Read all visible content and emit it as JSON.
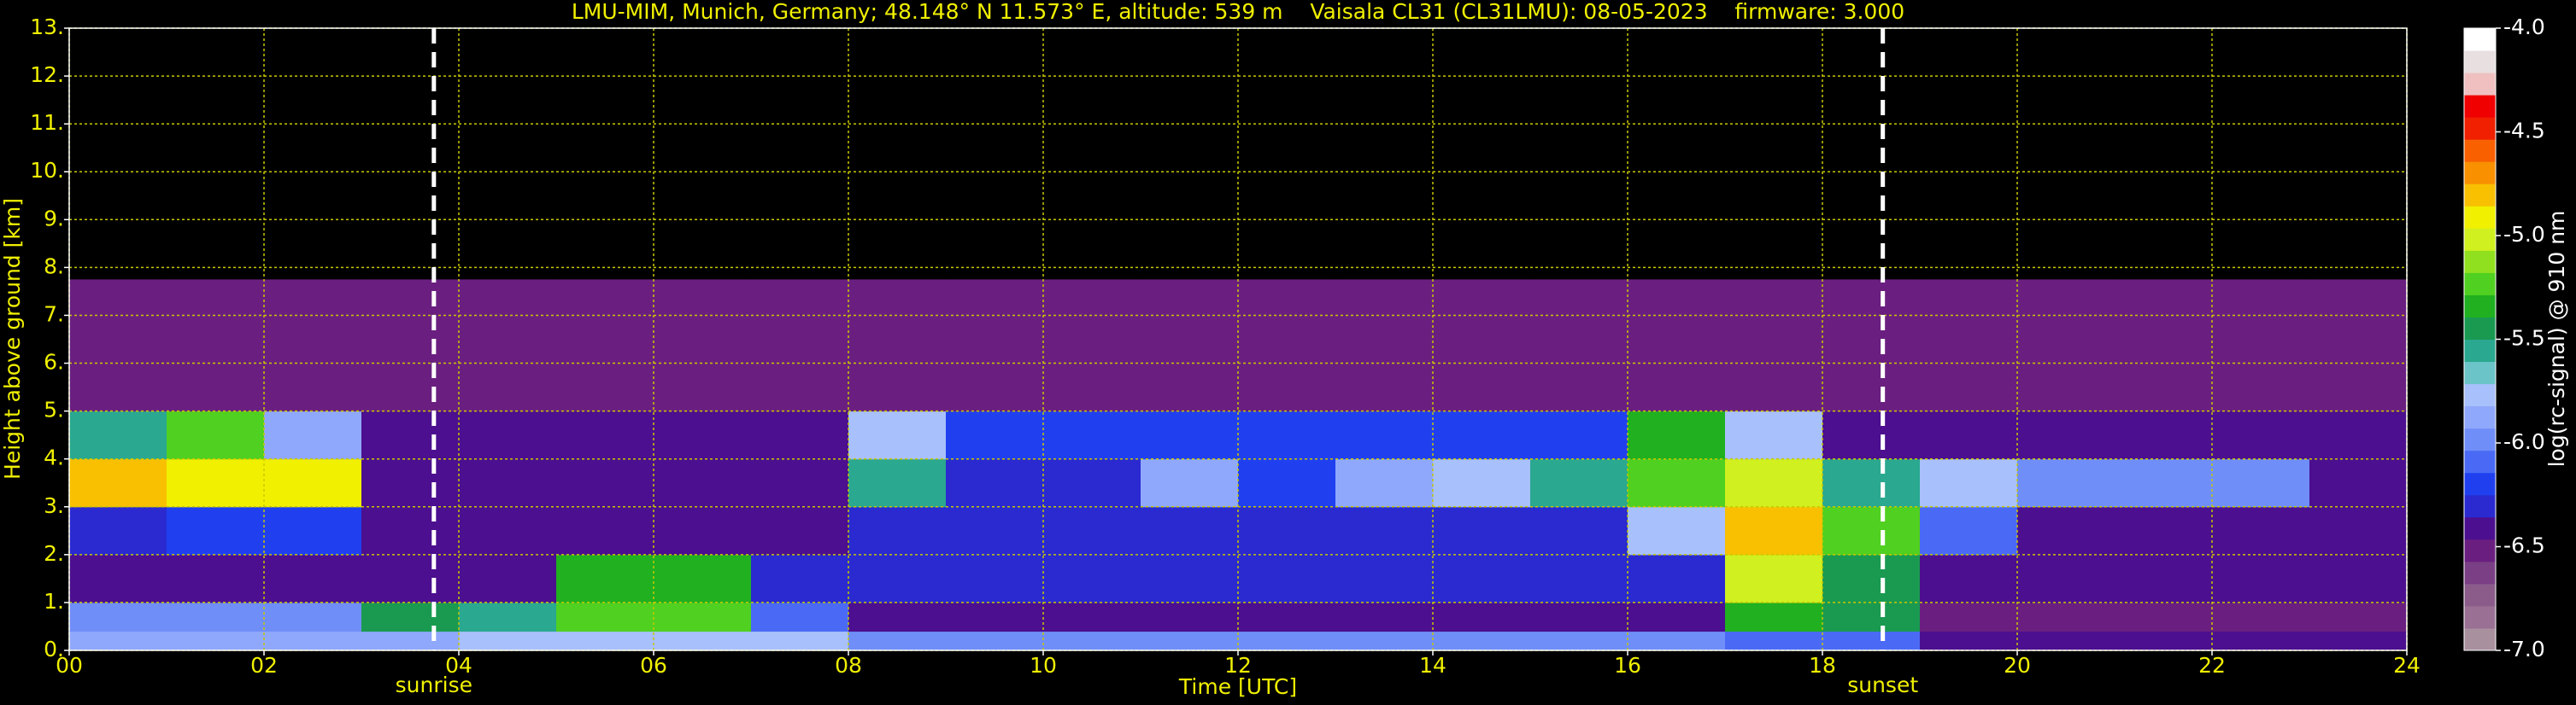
{
  "chart_data": {
    "type": "heatmap",
    "title": "LMU-MIM, Munich, Germany; 48.148° N 11.573° E, altitude: 539 m    Vaisala CL31 (CL31LMU): 08-05-2023    firmware: 3.000",
    "xlabel": "Time [UTC]",
    "ylabel": "Height above ground [km]",
    "xlim": [
      0,
      24
    ],
    "ylim": [
      0,
      13
    ],
    "xticks": [
      {
        "value": 0,
        "label": "00"
      },
      {
        "value": 2,
        "label": "02"
      },
      {
        "value": 4,
        "label": "04"
      },
      {
        "value": 6,
        "label": "06"
      },
      {
        "value": 8,
        "label": "08"
      },
      10,
      12,
      14,
      16,
      18,
      20,
      22,
      24
    ],
    "yticks": [
      {
        "value": 0,
        "label": "0."
      },
      {
        "value": 1,
        "label": "1."
      },
      {
        "value": 2,
        "label": "2."
      },
      {
        "value": 3,
        "label": "3."
      },
      {
        "value": 4,
        "label": "4."
      },
      {
        "value": 5,
        "label": "5."
      },
      {
        "value": 6,
        "label": "6."
      },
      {
        "value": 7,
        "label": "7."
      },
      {
        "value": 8,
        "label": "8."
      },
      {
        "value": 9,
        "label": "9."
      },
      {
        "value": 10,
        "label": "10."
      },
      {
        "value": 11,
        "label": "11."
      },
      {
        "value": 12,
        "label": "12."
      },
      {
        "value": 13,
        "label": "13."
      }
    ],
    "grid": true,
    "grid_color": "#c8c800",
    "text_color": "#f0f000",
    "x_bins": [
      0,
      1,
      2,
      3,
      4,
      5,
      6,
      7,
      8,
      9,
      10,
      11,
      12,
      13,
      14,
      15,
      16,
      17,
      18,
      19,
      20,
      21,
      22,
      23,
      24
    ],
    "y_bins": [
      0,
      0.4,
      1,
      2,
      3,
      4,
      5,
      7.75
    ],
    "z": [
      [
        -5.9,
        -5.9,
        -5.9,
        -5.9,
        -5.8,
        -5.8,
        -5.8,
        -5.8,
        -6.0,
        -6.0,
        -6.0,
        -6.0,
        -6.0,
        -6.0,
        -6.0,
        -6.0,
        -6.0,
        -6.1,
        -6.1,
        -6.4,
        -6.4,
        -6.4,
        -6.4,
        -6.4
      ],
      [
        -6.0,
        -6.0,
        -6.0,
        -5.5,
        -5.6,
        -5.2,
        -5.2,
        -6.1,
        -6.4,
        -6.4,
        -6.4,
        -6.4,
        -6.4,
        -6.4,
        -6.4,
        -6.4,
        -6.4,
        -5.3,
        -5.5,
        -6.5,
        -6.5,
        -6.5,
        -6.5,
        -6.5
      ],
      [
        -6.4,
        -6.4,
        -6.4,
        -6.4,
        -6.4,
        -5.3,
        -5.3,
        -6.3,
        -6.3,
        -6.3,
        -6.3,
        -6.3,
        -6.3,
        -6.3,
        -6.3,
        -6.3,
        -6.3,
        -5.0,
        -5.4,
        -6.4,
        -6.4,
        -6.4,
        -6.4,
        -6.4
      ],
      [
        -6.3,
        -6.2,
        -6.2,
        -6.4,
        -6.4,
        -6.4,
        -6.4,
        -6.4,
        -6.3,
        -6.3,
        -6.3,
        -6.3,
        -6.3,
        -6.3,
        -6.3,
        -6.3,
        -5.8,
        -4.8,
        -5.2,
        -6.1,
        -6.4,
        -6.4,
        -6.4,
        -6.4
      ],
      [
        -4.8,
        -4.9,
        -4.9,
        -6.4,
        -6.4,
        -6.4,
        -6.4,
        -6.4,
        -5.6,
        -6.3,
        -6.3,
        -5.9,
        -6.2,
        -5.9,
        -5.8,
        -5.6,
        -5.2,
        -5.0,
        -5.6,
        -5.8,
        -6.0,
        -6.0,
        -6.0,
        -6.4
      ],
      [
        -5.6,
        -5.2,
        -5.9,
        -6.4,
        -6.4,
        -6.4,
        -6.4,
        -6.4,
        -5.8,
        -6.2,
        -6.2,
        -6.2,
        -6.2,
        -6.2,
        -6.2,
        -6.2,
        -5.3,
        -5.8,
        -6.4,
        -6.4,
        -6.4,
        -6.4,
        -6.4,
        -6.4
      ],
      [
        -6.5,
        -6.5,
        -6.5,
        -6.5,
        -6.5,
        -6.5,
        -6.5,
        -6.5,
        -6.5,
        -6.5,
        -6.5,
        -6.5,
        -6.5,
        -6.5,
        -6.5,
        -6.5,
        -6.5,
        -6.5,
        -6.5,
        -6.5,
        -6.5,
        -6.5,
        -6.5,
        -6.5
      ]
    ],
    "colorbar": {
      "label": "log(rc-signal) @ 910 nm",
      "lim": [
        -7,
        -4
      ],
      "ticks": [
        {
          "value": -7,
          "label": "-7.0"
        },
        -6.5,
        {
          "value": -6,
          "label": "-6.0"
        },
        -5.5,
        {
          "value": -5,
          "label": "-5.0"
        },
        -4.5,
        {
          "value": -4,
          "label": "-4.0"
        }
      ],
      "colors": [
        "#a8909f",
        "#9a7094",
        "#8b5c8a",
        "#7a3f85",
        "#6a1f80",
        "#4b0f8f",
        "#2a2ad0",
        "#2040f0",
        "#4a6af5",
        "#6f8ef8",
        "#8fa8fb",
        "#a8c0fb",
        "#6bc4c8",
        "#2aa890",
        "#1a9a50",
        "#20b020",
        "#50d020",
        "#90e020",
        "#d0f020",
        "#f0f000",
        "#f8c000",
        "#f89000",
        "#f86000",
        "#f02000",
        "#f00000",
        "#f0c0c0",
        "#e8e0e0",
        "#ffffff"
      ]
    },
    "annotations": [
      {
        "text": "sunrise",
        "x": 3.744
      },
      {
        "text": "sunset",
        "x": 18.62
      }
    ]
  }
}
